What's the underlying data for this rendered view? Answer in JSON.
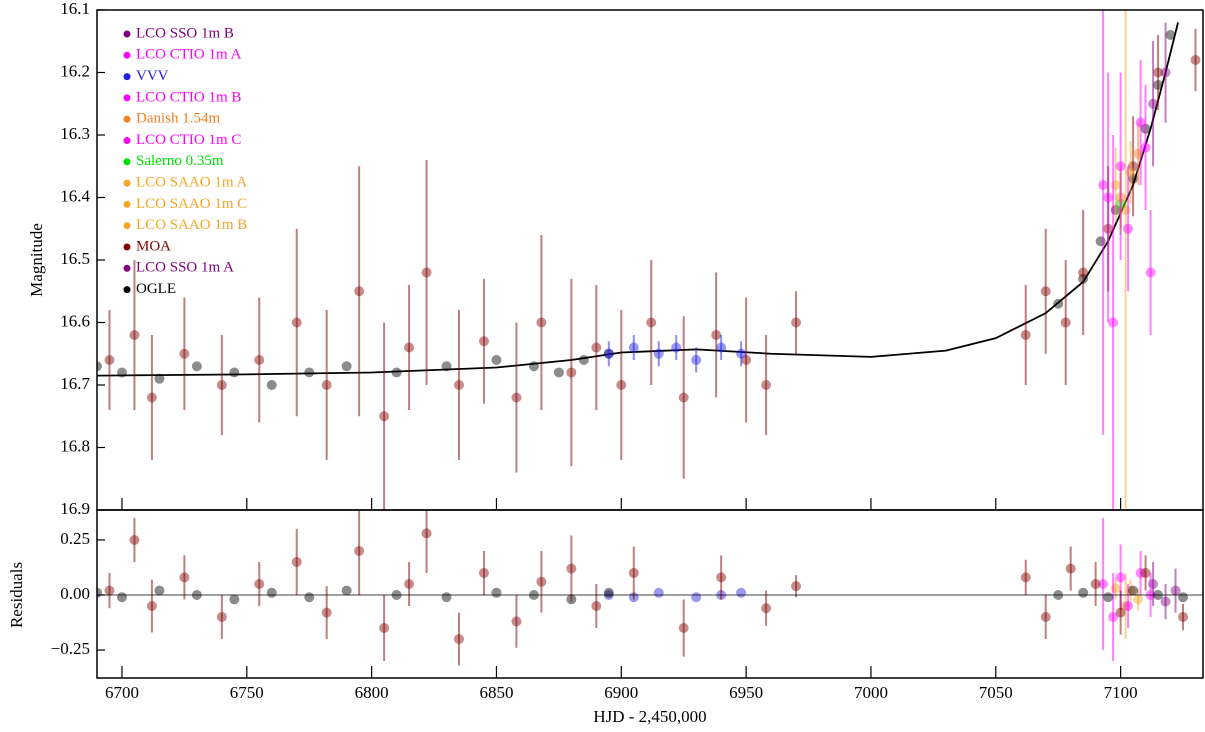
{
  "chart_data": [
    {
      "type": "scatter",
      "ylabel": "Magnitude",
      "ylim": [
        16.9,
        16.1
      ],
      "yticks": [
        16.1,
        16.2,
        16.3,
        16.4,
        16.5,
        16.6,
        16.7,
        16.8,
        16.9
      ],
      "legend": "upper left",
      "model": {
        "color": "#000000",
        "x": [
          6690,
          6750,
          6800,
          6850,
          6880,
          6900,
          6930,
          6960,
          7000,
          7030,
          7050,
          7070,
          7085,
          7095,
          7105,
          7112,
          7118,
          7123
        ],
        "values": [
          16.685,
          16.683,
          16.68,
          16.672,
          16.66,
          16.648,
          16.643,
          16.65,
          16.655,
          16.645,
          16.625,
          16.585,
          16.535,
          16.47,
          16.38,
          16.29,
          16.2,
          16.12
        ]
      },
      "series": [
        {
          "name": "LCO SSO 1m B",
          "color": "#800080",
          "x": [
            7113
          ],
          "values": [
            16.25
          ],
          "errors": [
            0.1
          ]
        },
        {
          "name": "LCO CTIO 1m A",
          "color": "#ff00ff",
          "x": [
            7095,
            7100,
            7108,
            7112
          ],
          "values": [
            16.4,
            16.35,
            16.28,
            16.52
          ],
          "errors": [
            0.2,
            0.15,
            0.1,
            0.1
          ]
        },
        {
          "name": "VVV",
          "color": "#2020e0",
          "x": [
            6895,
            6905,
            6915,
            6922,
            6930,
            6940,
            6948
          ],
          "values": [
            16.65,
            16.64,
            16.65,
            16.64,
            16.66,
            16.64,
            16.65
          ],
          "errors": [
            0.02,
            0.02,
            0.02,
            0.02,
            0.02,
            0.02,
            0.02
          ]
        },
        {
          "name": "LCO CTIO 1m B",
          "color": "#ff00ff",
          "x": [
            7097,
            7103
          ],
          "values": [
            16.6,
            16.45
          ],
          "errors": [
            0.3,
            0.1
          ]
        },
        {
          "name": "Danish 1.54m",
          "color": "#f07f20",
          "x": [
            7100,
            7107
          ],
          "values": [
            16.4,
            16.33
          ],
          "errors": [
            0.05,
            0.05
          ]
        },
        {
          "name": "LCO CTIO 1m C",
          "color": "#ff00ff",
          "x": [
            7093,
            7110
          ],
          "values": [
            16.38,
            16.32
          ],
          "errors": [
            0.4,
            0.1
          ]
        },
        {
          "name": "Salerno 0.35m",
          "color": "#00e000",
          "x": [
            7100
          ],
          "values": [
            16.41
          ],
          "errors": [
            0.05
          ]
        },
        {
          "name": "LCO SAAO 1m A",
          "color": "#f5a623",
          "x": [
            7098
          ],
          "values": [
            16.38
          ],
          "errors": [
            0.06
          ]
        },
        {
          "name": "LCO SAAO 1m C",
          "color": "#f5a623",
          "x": [
            7104
          ],
          "values": [
            16.36
          ],
          "errors": [
            0.05
          ]
        },
        {
          "name": "LCO SAAO 1m B",
          "color": "#f5a623",
          "x": [
            7102
          ],
          "values": [
            16.42
          ],
          "errors": [
            0.5
          ]
        },
        {
          "name": "MOA",
          "color": "#800000",
          "x": [
            6695,
            6705,
            6712,
            6725,
            6740,
            6755,
            6770,
            6782,
            6795,
            6805,
            6815,
            6822,
            6835,
            6845,
            6858,
            6868,
            6880,
            6890,
            6900,
            6912,
            6925,
            6938,
            6950,
            6958,
            6970,
            7062,
            7070,
            7078,
            7085,
            7095,
            7105,
            7115,
            7130
          ],
          "values": [
            16.66,
            16.62,
            16.72,
            16.65,
            16.7,
            16.66,
            16.6,
            16.7,
            16.55,
            16.75,
            16.64,
            16.52,
            16.7,
            16.63,
            16.72,
            16.6,
            16.68,
            16.64,
            16.7,
            16.6,
            16.72,
            16.62,
            16.66,
            16.7,
            16.6,
            16.62,
            16.55,
            16.6,
            16.52,
            16.45,
            16.35,
            16.2,
            16.18
          ],
          "errors": [
            0.08,
            0.12,
            0.1,
            0.09,
            0.08,
            0.1,
            0.15,
            0.12,
            0.2,
            0.15,
            0.1,
            0.18,
            0.12,
            0.1,
            0.12,
            0.14,
            0.15,
            0.1,
            0.12,
            0.1,
            0.13,
            0.1,
            0.1,
            0.08,
            0.05,
            0.08,
            0.1,
            0.1,
            0.1,
            0.1,
            0.08,
            0.06,
            0.05
          ]
        },
        {
          "name": "LCO SSO 1m A",
          "color": "#800080",
          "x": [
            7118
          ],
          "values": [
            16.2
          ],
          "errors": [
            0.08
          ]
        },
        {
          "name": "OGLE",
          "color": "#000000",
          "x": [
            6690,
            6700,
            6715,
            6730,
            6745,
            6760,
            6775,
            6790,
            6810,
            6830,
            6850,
            6865,
            6875,
            6885,
            6895,
            7075,
            7085,
            7092,
            7098,
            7105,
            7110,
            7115,
            7120
          ],
          "values": [
            16.67,
            16.68,
            16.69,
            16.67,
            16.68,
            16.7,
            16.68,
            16.67,
            16.68,
            16.67,
            16.66,
            16.67,
            16.68,
            16.66,
            16.65,
            16.57,
            16.53,
            16.47,
            16.42,
            16.37,
            16.29,
            16.22,
            16.14
          ]
        }
      ]
    },
    {
      "type": "scatter",
      "ylabel": "Residuals",
      "xlabel": "HJD - 2,450,000",
      "xlim": [
        6690,
        7133
      ],
      "xticks": [
        6700,
        6750,
        6800,
        6850,
        6900,
        6950,
        7000,
        7050,
        7100
      ],
      "ylim": [
        -0.377,
        0.386
      ],
      "yticks": [
        {
          "value": 0.25,
          "label": "0.25"
        },
        {
          "value": 0,
          "label": "0.00"
        },
        {
          "value": -0.25,
          "label": "−0.25"
        }
      ],
      "series": [
        {
          "color": "#800000",
          "x": [
            6695,
            6705,
            6712,
            6725,
            6740,
            6755,
            6770,
            6782,
            6795,
            6805,
            6815,
            6822,
            6835,
            6845,
            6858,
            6868,
            6880,
            6890,
            6905,
            6925,
            6940,
            6958,
            6970,
            7062,
            7070,
            7080,
            7090,
            7100,
            7110,
            7125
          ],
          "values": [
            0.02,
            0.25,
            -0.05,
            0.08,
            -0.1,
            0.05,
            0.15,
            -0.08,
            0.2,
            -0.15,
            0.05,
            0.28,
            -0.2,
            0.1,
            -0.12,
            0.06,
            0.12,
            -0.05,
            0.1,
            -0.15,
            0.08,
            -0.06,
            0.04,
            0.08,
            -0.1,
            0.12,
            0.05,
            -0.08,
            0.1,
            -0.1
          ],
          "errors": [
            0.08,
            0.1,
            0.12,
            0.1,
            0.1,
            0.1,
            0.15,
            0.12,
            0.2,
            0.15,
            0.1,
            0.18,
            0.12,
            0.1,
            0.12,
            0.14,
            0.15,
            0.1,
            0.12,
            0.13,
            0.1,
            0.08,
            0.05,
            0.08,
            0.1,
            0.1,
            0.1,
            0.1,
            0.08,
            0.06
          ]
        },
        {
          "color": "#000000",
          "x": [
            6690,
            6700,
            6715,
            6730,
            6745,
            6760,
            6775,
            6790,
            6810,
            6830,
            6850,
            6865,
            6880,
            6895,
            7075,
            7085,
            7095,
            7105,
            7115,
            7125
          ],
          "values": [
            0.01,
            -0.01,
            0.02,
            0,
            -0.02,
            0.01,
            -0.01,
            0.02,
            0,
            -0.01,
            0.01,
            0,
            -0.02,
            0.01,
            0,
            0.01,
            -0.01,
            0.02,
            0,
            -0.01
          ]
        },
        {
          "color": "#2020e0",
          "x": [
            6895,
            6905,
            6915,
            6930,
            6940,
            6948
          ],
          "values": [
            0,
            -0.01,
            0.01,
            -0.01,
            0,
            0.01
          ]
        },
        {
          "color": "#ff00ff",
          "x": [
            7093,
            7097,
            7100,
            7103,
            7108,
            7112
          ],
          "values": [
            0.05,
            -0.1,
            0.08,
            -0.05,
            0.1,
            0
          ],
          "errors": [
            0.3,
            0.2,
            0.15,
            0.1,
            0.1,
            0.1
          ]
        },
        {
          "color": "#f5a623",
          "x": [
            7098,
            7102,
            7104,
            7107
          ],
          "values": [
            0.03,
            -0.05,
            0.02,
            -0.02
          ],
          "errors": [
            0.05,
            0.15,
            0.05,
            0.05
          ]
        },
        {
          "color": "#800080",
          "x": [
            7113,
            7118,
            7122
          ],
          "values": [
            0.05,
            -0.03,
            0.02
          ],
          "errors": [
            0.1,
            0.08,
            0.1
          ]
        }
      ]
    }
  ]
}
